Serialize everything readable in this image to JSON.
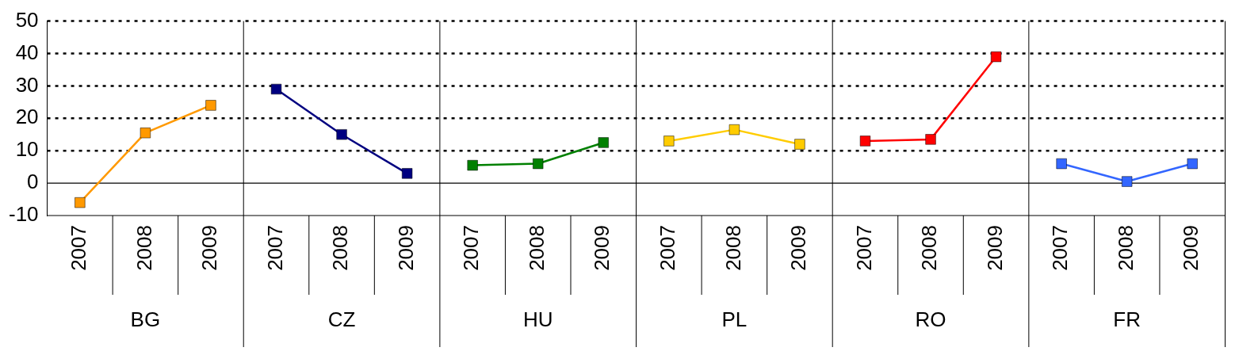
{
  "chart_data": {
    "type": "line",
    "categories": [
      "2007",
      "2008",
      "2009",
      "2007",
      "2008",
      "2009",
      "2007",
      "2008",
      "2009",
      "2007",
      "2008",
      "2009",
      "2007",
      "2008",
      "2009",
      "2007",
      "2008",
      "2009"
    ],
    "series": [
      {
        "color": "#ff9900",
        "values": [
          -6,
          15.5,
          24,
          null,
          null,
          null,
          null,
          null,
          null,
          null,
          null,
          null,
          null,
          null,
          null,
          null,
          null,
          null
        ]
      },
      {
        "color": "#000080",
        "values": [
          null,
          null,
          null,
          29,
          15,
          3,
          null,
          null,
          null,
          null,
          null,
          null,
          null,
          null,
          null,
          null,
          null,
          null
        ]
      },
      {
        "color": "#008000",
        "values": [
          null,
          null,
          null,
          null,
          null,
          null,
          5.5,
          6,
          12.5,
          null,
          null,
          null,
          null,
          null,
          null,
          null,
          null,
          null
        ]
      },
      {
        "color": "#ffcc00",
        "values": [
          null,
          null,
          null,
          null,
          null,
          null,
          null,
          null,
          null,
          13,
          16.5,
          12,
          null,
          null,
          null,
          null,
          null,
          null
        ]
      },
      {
        "color": "#ff0000",
        "values": [
          null,
          null,
          null,
          null,
          null,
          null,
          null,
          null,
          null,
          null,
          null,
          null,
          13,
          13.5,
          39,
          null,
          null,
          null
        ]
      },
      {
        "color": "#3366ff",
        "values": [
          null,
          null,
          null,
          null,
          null,
          null,
          null,
          null,
          null,
          null,
          null,
          null,
          null,
          null,
          null,
          6,
          0.5,
          6
        ]
      }
    ],
    "annotations": [
      "BG",
      "CZ",
      "HU",
      "PL",
      "RO",
      "FR"
    ],
    "ylim": [
      -10,
      50
    ],
    "yticks": [
      -10,
      0,
      10,
      20,
      30,
      40,
      50
    ],
    "grid": "y",
    "marker": "square",
    "line_style": "solid",
    "legend": false
  }
}
